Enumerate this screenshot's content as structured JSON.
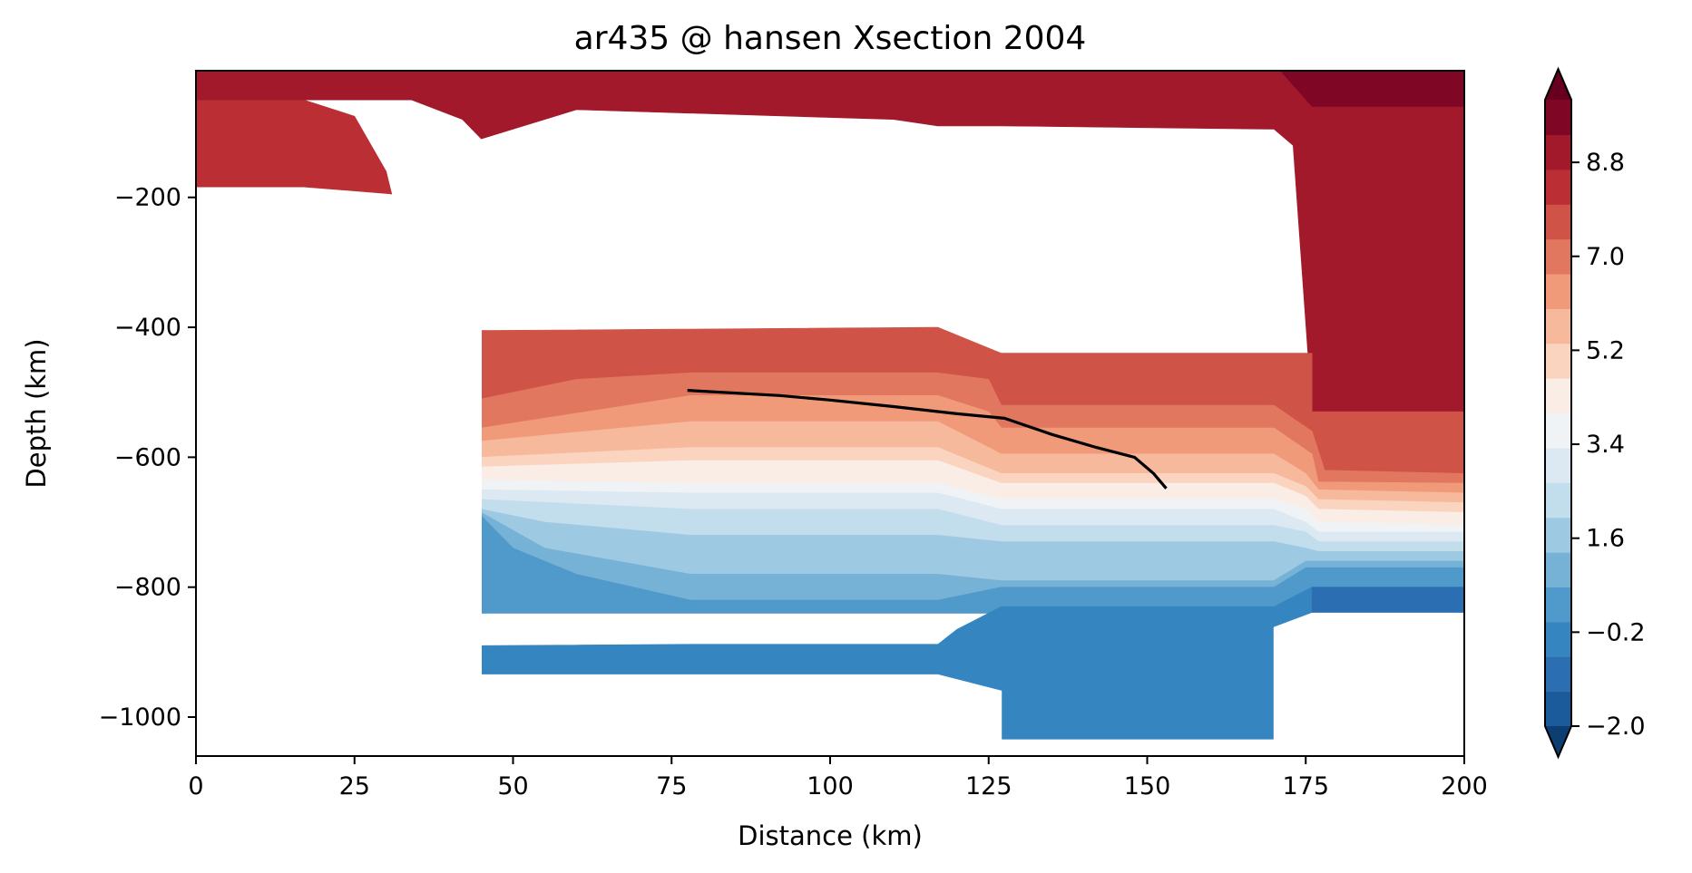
{
  "chart_data": {
    "type": "contour",
    "title": "ar435 @ hansen Xsection 2004",
    "xlabel": "Distance (km)",
    "ylabel": "Depth (km)",
    "xlim": [
      0,
      200
    ],
    "ylim": [
      -1060,
      -5
    ],
    "xticks": [
      0,
      25,
      50,
      75,
      100,
      125,
      150,
      175,
      200
    ],
    "xtick_labels": [
      "0",
      "25",
      "50",
      "75",
      "100",
      "125",
      "150",
      "175",
      "200"
    ],
    "yticks": [
      -200,
      -400,
      -600,
      -800,
      -1000
    ],
    "ytick_labels": [
      "−200",
      "−400",
      "−600",
      "−800",
      "−1000"
    ],
    "colorbar": {
      "colormap": "RdBu_r",
      "vmin": -2.0,
      "vmax": 10.0,
      "levels": 20,
      "extend": "both",
      "ticks": [
        -2.0,
        -0.2,
        1.6,
        3.4,
        5.2,
        7.0,
        8.8
      ],
      "tick_labels": [
        "−2.0",
        "−0.2",
        "1.6",
        "3.4",
        "5.2",
        "7.0",
        "8.8"
      ],
      "colors": [
        "#0d3e72",
        "#1b5a9b",
        "#2b6fb2",
        "#3585c0",
        "#4f9acb",
        "#75b2d6",
        "#9dc9e2",
        "#c2ddec",
        "#dce9f2",
        "#f0f3f6",
        "#faede6",
        "#fbd4bf",
        "#f7b99b",
        "#f09a7a",
        "#e0775e",
        "#cf5346",
        "#ba2e34",
        "#a2192b",
        "#7f0625",
        "#67001f"
      ]
    },
    "surface": {
      "name": "line",
      "x": [
        77.5,
        92,
        100,
        110,
        120,
        127.5,
        135,
        142,
        148,
        151,
        153
      ],
      "y": [
        -497,
        -505,
        -512,
        -522,
        -533,
        -540,
        -565,
        -585,
        -600,
        -625,
        -648
      ]
    }
  }
}
